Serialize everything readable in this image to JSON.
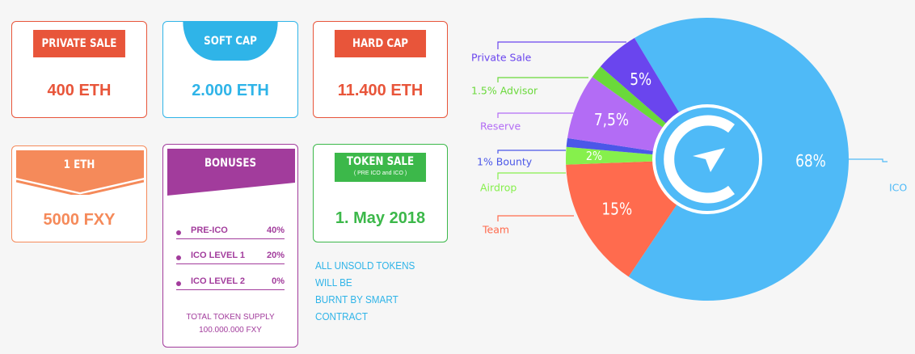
{
  "cards": [
    {
      "header": "PRIVATE SALE",
      "value": "400 ETH"
    },
    {
      "header": "SOFT CAP",
      "value": "2.000 ETH"
    },
    {
      "header": "HARD CAP",
      "value": "11.400 ETH"
    },
    {
      "header": "1 ETH",
      "value": "5000 FXY"
    }
  ],
  "bonuses": {
    "header": "BONUSES",
    "rows": [
      [
        "PRE-ICO",
        "40%"
      ],
      [
        "ICO LEVEL 1",
        "20%"
      ],
      [
        "ICO LEVEL 2",
        "0%"
      ]
    ],
    "footer": [
      "TOTAL TOKEN SUPPLY",
      "100.000.000 FXY"
    ]
  },
  "token_sale": {
    "header": "TOKEN SALE",
    "subheader": "( PRE ICO and ICO )",
    "value": "1. May 2018"
  },
  "note": [
    "ALL UNSOLD TOKENS WILL BE",
    "BURNT BY SMART CONTRACT"
  ],
  "chart_data": {
    "type": "pie",
    "categories": [
      "ICO",
      "Team",
      "Airdrop",
      "1% Bounty",
      "Reserve",
      "1.5% Advisor",
      "Private Sale"
    ],
    "values": [
      68,
      15,
      2,
      1,
      7.5,
      1.5,
      5
    ],
    "value_labels": [
      "68%",
      "15%",
      "2%",
      null,
      "7,5%",
      null,
      "5%"
    ],
    "colors": [
      "#4fbaf7",
      "#ff6b4e",
      "#86f04c",
      "#4b57e8",
      "#b36cf5",
      "#6ad93a",
      "#6a45ee"
    ]
  }
}
